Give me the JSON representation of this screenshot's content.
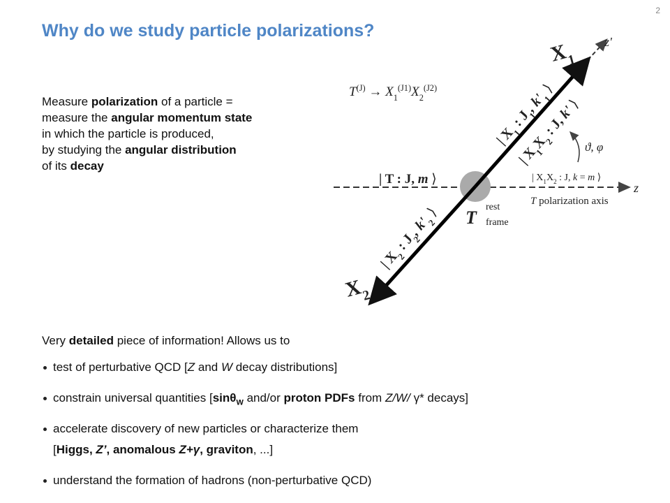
{
  "page_number": "2",
  "title": "Why do we study particle polarizations?",
  "intro": [
    [
      "Measure ",
      {
        "text": "polarization",
        "style": "bold"
      },
      " of a particle ="
    ],
    [
      "measure the ",
      {
        "text": "angular momentum state",
        "style": "bold"
      }
    ],
    [
      "in which the particle is produced,"
    ],
    [
      "by studying the ",
      {
        "text": "angular distribution",
        "style": "bold"
      }
    ],
    [
      "of its ",
      {
        "text": "decay",
        "style": "bold"
      }
    ]
  ],
  "diagram": {
    "labels": [
      [
        {
          "text": "T",
          "style": "italic"
        },
        {
          "text": "(J)",
          "style": "sup"
        },
        " → ",
        {
          "text": "X",
          "style": "italic"
        },
        {
          "text": "1",
          "style": "sub"
        },
        {
          "text": "(J1)",
          "style": "sup"
        },
        {
          "text": "X",
          "style": "italic"
        },
        {
          "text": "2",
          "style": "sub"
        },
        {
          "text": "(J2)",
          "style": "sup"
        }
      ],
      [
        {
          "text": "X",
          "style": "bold"
        },
        {
          "text": "1",
          "style": "bold-sub"
        }
      ],
      [
        {
          "text": "z'",
          "style": "italic"
        }
      ],
      [
        {
          "text": "| X",
          "style": "bold"
        },
        {
          "text": "1",
          "style": "bold-sub"
        },
        {
          "text": " : J",
          "style": "bold"
        },
        {
          "text": "1",
          "style": "bold-sub"
        },
        {
          "text": ", k'",
          "style": "bold-italic"
        },
        {
          "text": "1",
          "style": "bold-sub"
        },
        " ⟩"
      ],
      [
        {
          "text": "| X",
          "style": "bold"
        },
        {
          "text": "1",
          "style": "bold-sub"
        },
        {
          "text": "X",
          "style": "bold"
        },
        {
          "text": "2",
          "style": "bold-sub"
        },
        {
          "text": " : J, ",
          "style": "bold"
        },
        {
          "text": "k'",
          "style": "bold-italic"
        },
        " ⟩"
      ],
      [
        {
          "text": "ϑ, φ",
          "style": "italic"
        }
      ],
      [
        {
          "text": "| T : J, ",
          "style": "bold"
        },
        {
          "text": "m",
          "style": "bold-italic"
        },
        " ⟩"
      ],
      [
        "| X",
        {
          "text": "1",
          "style": "sub"
        },
        "X",
        {
          "text": "2",
          "style": "sub"
        },
        " : J, ",
        {
          "text": "k",
          "style": "italic"
        },
        " = ",
        {
          "text": "m",
          "style": "italic"
        },
        " ⟩"
      ],
      [
        {
          "text": "z",
          "style": "italic"
        }
      ],
      [
        {
          "text": "T",
          "style": "italic"
        },
        " polarization axis"
      ],
      [
        {
          "text": "T",
          "style": "bold-italic"
        }
      ],
      [
        "rest"
      ],
      [
        "frame"
      ],
      [
        {
          "text": "| X",
          "style": "bold"
        },
        {
          "text": "2",
          "style": "bold-sub"
        },
        {
          "text": " : J",
          "style": "bold"
        },
        {
          "text": "2",
          "style": "bold-sub"
        },
        {
          "text": ", k'",
          "style": "bold-italic"
        },
        {
          "text": "2",
          "style": "bold-sub"
        },
        " ⟩"
      ],
      [
        {
          "text": "X",
          "style": "bold"
        },
        {
          "text": "2",
          "style": "bold-sub"
        }
      ]
    ]
  },
  "detail": [
    "Very ",
    {
      "text": "detailed",
      "style": "bold"
    },
    " piece of information! Allows us to"
  ],
  "bullets": [
    [
      [
        "test of perturbative QCD [",
        {
          "text": "Z",
          "style": "italic"
        },
        " and ",
        {
          "text": "W",
          "style": "italic"
        },
        " decay distributions]"
      ]
    ],
    [
      [
        "constrain universal quantities [",
        {
          "text": "sinθ",
          "style": "bold"
        },
        {
          "text": "W",
          "style": "bold-sub"
        },
        " and/or ",
        {
          "text": "proton PDFs",
          "style": "bold"
        },
        " from ",
        {
          "text": "Z/W/",
          "style": "italic"
        },
        " γ* decays]"
      ]
    ],
    [
      [
        "accelerate discovery of new particles or characterize them"
      ],
      [
        "[",
        {
          "text": "Higgs, ",
          "style": "bold"
        },
        {
          "text": "Z’",
          "style": "bold-italic"
        },
        {
          "text": ", anomalous ",
          "style": "bold"
        },
        {
          "text": "Z+γ",
          "style": "bold-italic"
        },
        {
          "text": ", graviton",
          "style": "bold"
        },
        ", ...]"
      ]
    ],
    [
      [
        "understand the formation of hadrons (non-perturbative QCD)"
      ]
    ]
  ]
}
